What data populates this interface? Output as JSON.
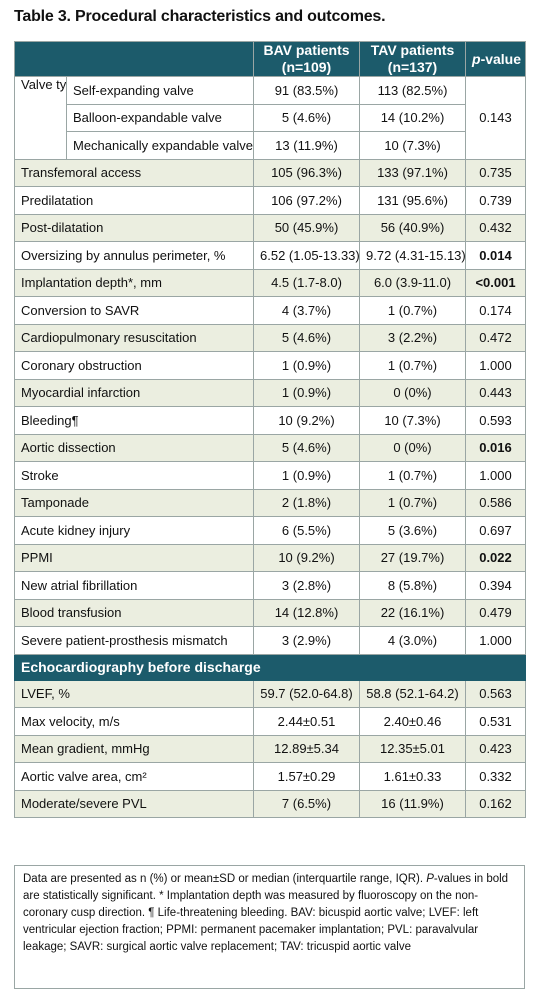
{
  "title": "Table 3. Procedural characteristics and outcomes.",
  "header": {
    "bav": "BAV patients",
    "bav_n": "(n=109)",
    "tav": "TAV patients",
    "tav_n": "(n=137)",
    "p_italic": "p",
    "p_rest": "-value"
  },
  "valve_type": {
    "label": "Valve type",
    "p": "0.143",
    "rows": [
      {
        "label": "Self-expanding valve",
        "bav": "91 (83.5%)",
        "tav": "113 (82.5%)"
      },
      {
        "label": "Balloon-expandable valve",
        "bav": "5 (4.6%)",
        "tav": "14 (10.2%)"
      },
      {
        "label": "Mechanically expandable valve",
        "bav": "13 (11.9%)",
        "tav": "10 (7.3%)"
      }
    ]
  },
  "rows": [
    {
      "label": "Transfemoral access",
      "bav": "105 (96.3%)",
      "tav": "133 (97.1%)",
      "p": "0.735",
      "sig": false
    },
    {
      "label": "Predilatation",
      "bav": "106 (97.2%)",
      "tav": "131 (95.6%)",
      "p": "0.739",
      "sig": false
    },
    {
      "label": "Post-dilatation",
      "bav": "50 (45.9%)",
      "tav": "56 (40.9%)",
      "p": "0.432",
      "sig": false
    },
    {
      "label": "Oversizing by annulus perimeter, %",
      "bav": "6.52 (1.05-13.33)",
      "tav": "9.72 (4.31-15.13)",
      "p": "0.014",
      "sig": true
    },
    {
      "label": "Implantation depth*, mm",
      "bav": "4.5 (1.7-8.0)",
      "tav": "6.0 (3.9-11.0)",
      "p": "<0.001",
      "sig": true
    },
    {
      "label": "Conversion to SAVR",
      "bav": "4 (3.7%)",
      "tav": "1 (0.7%)",
      "p": "0.174",
      "sig": false
    },
    {
      "label": "Cardiopulmonary resuscitation",
      "bav": "5 (4.6%)",
      "tav": "3 (2.2%)",
      "p": "0.472",
      "sig": false
    },
    {
      "label": "Coronary obstruction",
      "bav": "1 (0.9%)",
      "tav": "1 (0.7%)",
      "p": "1.000",
      "sig": false
    },
    {
      "label": "Myocardial infarction",
      "bav": "1 (0.9%)",
      "tav": "0 (0%)",
      "p": "0.443",
      "sig": false
    },
    {
      "label": "Bleeding¶",
      "bav": "10 (9.2%)",
      "tav": "10 (7.3%)",
      "p": "0.593",
      "sig": false
    },
    {
      "label": "Aortic dissection",
      "bav": "5 (4.6%)",
      "tav": "0 (0%)",
      "p": "0.016",
      "sig": true
    },
    {
      "label": "Stroke",
      "bav": "1 (0.9%)",
      "tav": "1 (0.7%)",
      "p": "1.000",
      "sig": false
    },
    {
      "label": "Tamponade",
      "bav": "2 (1.8%)",
      "tav": "1 (0.7%)",
      "p": "0.586",
      "sig": false
    },
    {
      "label": "Acute kidney injury",
      "bav": "6 (5.5%)",
      "tav": "5 (3.6%)",
      "p": "0.697",
      "sig": false
    },
    {
      "label": "PPMI",
      "bav": "10 (9.2%)",
      "tav": "27 (19.7%)",
      "p": "0.022",
      "sig": true
    },
    {
      "label": "New atrial fibrillation",
      "bav": "3 (2.8%)",
      "tav": "8 (5.8%)",
      "p": "0.394",
      "sig": false
    },
    {
      "label": "Blood transfusion",
      "bav": "14 (12.8%)",
      "tav": "22 (16.1%)",
      "p": "0.479",
      "sig": false
    },
    {
      "label": "Severe patient-prosthesis mismatch",
      "bav": "3 (2.9%)",
      "tav": "4 (3.0%)",
      "p": "1.000",
      "sig": false
    }
  ],
  "echo_section": "Echocardiography before discharge",
  "echo_rows": [
    {
      "label": "LVEF, %",
      "bav": "59.7 (52.0-64.8)",
      "tav": "58.8 (52.1-64.2)",
      "p": "0.563",
      "sig": false
    },
    {
      "label": "Max velocity, m/s",
      "bav": "2.44±0.51",
      "tav": "2.40±0.46",
      "p": "0.531",
      "sig": false
    },
    {
      "label": "Mean gradient, mmHg",
      "bav": "12.89±5.34",
      "tav": "12.35±5.01",
      "p": "0.423",
      "sig": false
    },
    {
      "label": "Aortic valve area, cm²",
      "bav": "1.57±0.29",
      "tav": "1.61±0.33",
      "p": "0.332",
      "sig": false
    },
    {
      "label": "Moderate/severe PVL",
      "bav": "7 (6.5%)",
      "tav": "16 (11.9%)",
      "p": "0.162",
      "sig": false
    }
  ],
  "footnote": {
    "part1": "Data are presented as n (%) or mean±SD or median (interquartile range, IQR). ",
    "part2_italic": "P",
    "part3": "-values in bold are statistically significant. * Implantation depth was measured by fluoroscopy on the non-coronary cusp direction. ¶ Life-threatening bleeding. BAV: bicuspid aortic valve; LVEF: left ventricular ejection fraction; PPMI: permanent pacemaker implantation; PVL: paravalvular leakage; SAVR: surgical aortic valve replacement; TAV: tricuspid aortic valve"
  },
  "colors": {
    "header_bg": "#1c5b6b",
    "alt_row": "#ebeee0",
    "border": "#9aa6a4"
  }
}
